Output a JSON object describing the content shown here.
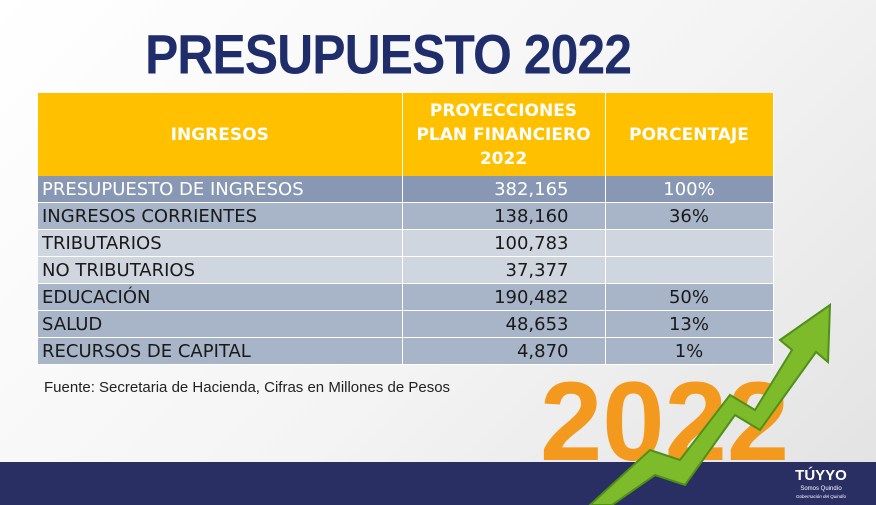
{
  "title": "PRESUPUESTO 2022",
  "table": {
    "headers": {
      "col1": "INGRESOS",
      "col2_line1": "PROYECCIONES",
      "col2_line2": "PLAN FINANCIERO",
      "col2_line3": "2022",
      "col3": "PORCENTAJE"
    },
    "rows": [
      {
        "label": "PRESUPUESTO DE INGRESOS",
        "amount": "382,165",
        "percent": "100%"
      },
      {
        "label": "INGRESOS CORRIENTES",
        "amount": "138,160",
        "percent": "36%"
      },
      {
        "label": "TRIBUTARIOS",
        "amount": "100,783",
        "percent": ""
      },
      {
        "label": "NO TRIBUTARIOS",
        "amount": "37,377",
        "percent": ""
      },
      {
        "label": "EDUCACIÓN",
        "amount": "190,482",
        "percent": "50%"
      },
      {
        "label": "SALUD",
        "amount": "48,653",
        "percent": "13%"
      },
      {
        "label": "RECURSOS DE CAPITAL",
        "amount": "4,870",
        "percent": "1%"
      }
    ]
  },
  "source_note": "Fuente: Secretaria de Hacienda, Cifras en Millones de Pesos",
  "decoration": {
    "year_text": "2022"
  },
  "logo": {
    "text": "TÚYYO",
    "tagline": "Somos Quindío",
    "subtitle": "Gobernación del Quindío"
  },
  "colors": {
    "title": "#1f2d6b",
    "header_bg": "#ffc000",
    "row_dark": "#8898b4",
    "row_mid": "#a8b4c8",
    "row_light": "#d0d6e0",
    "bottom_bar": "#2a2f63",
    "deco_orange": "#f39a1e",
    "deco_green": "#7dbb2b"
  }
}
